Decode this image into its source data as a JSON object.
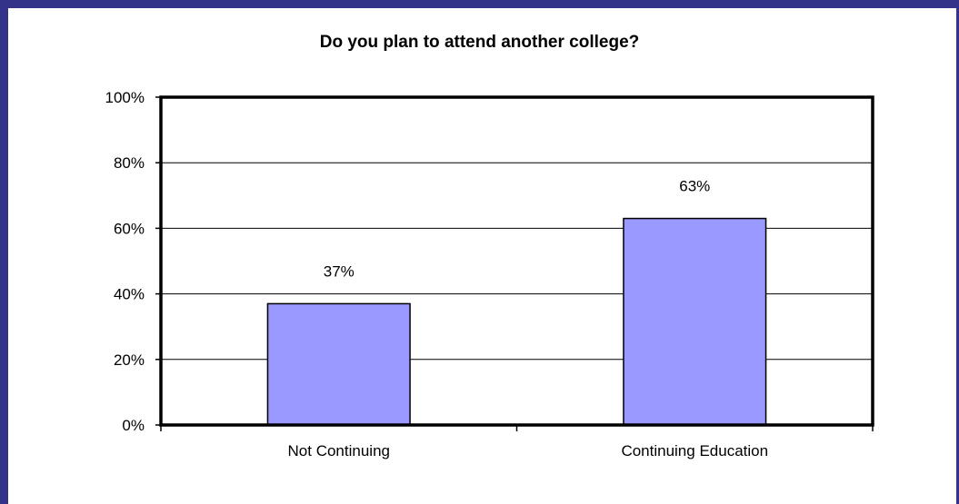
{
  "chart_data": {
    "type": "bar",
    "title": "Do you plan to attend another college?",
    "categories": [
      "Not Continuing",
      "Continuing Education"
    ],
    "values": [
      37,
      63
    ],
    "data_labels": [
      "37%",
      "63%"
    ],
    "ylim": [
      0,
      100
    ],
    "yticks": [
      0,
      20,
      40,
      60,
      80,
      100
    ],
    "ytick_labels": [
      "0%",
      "20%",
      "40%",
      "60%",
      "80%",
      "100%"
    ],
    "grid": true,
    "legend": "none",
    "bar_color": "#9999ff",
    "frame_color": "#33338a"
  }
}
